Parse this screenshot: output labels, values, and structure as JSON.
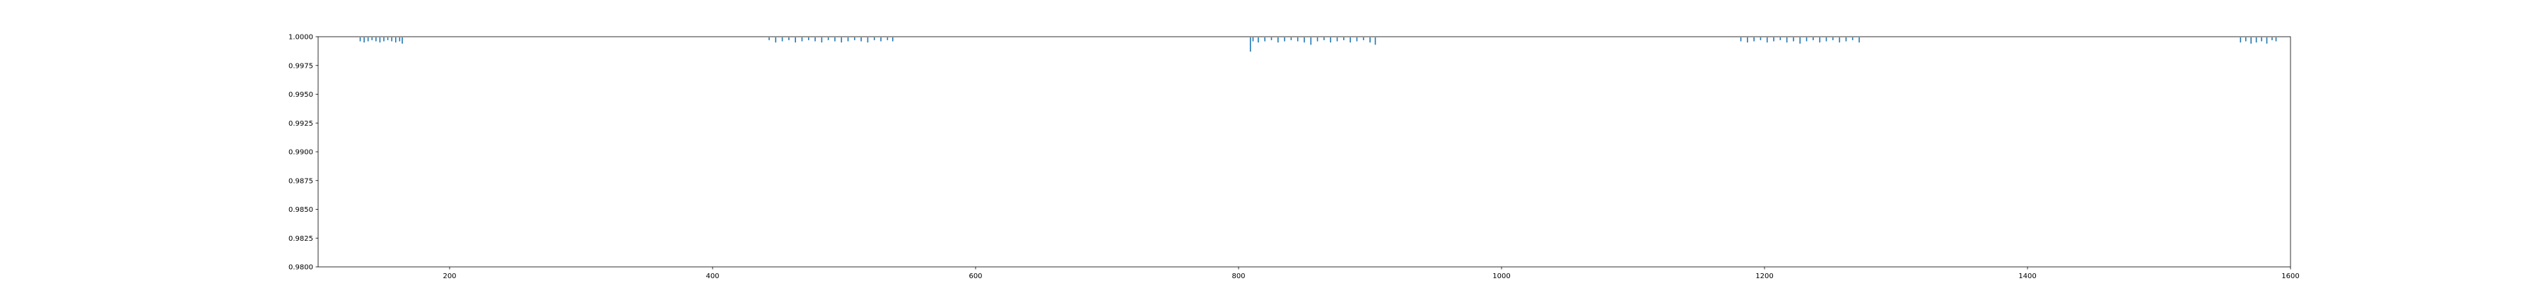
{
  "chart_data": {
    "type": "scatter",
    "title": "",
    "xlabel": "",
    "ylabel": "",
    "xlim": [
      100,
      1600
    ],
    "ylim": [
      0.98,
      1.0
    ],
    "grid": false,
    "x_ticks": [
      200,
      400,
      600,
      800,
      1000,
      1200,
      1400,
      1600
    ],
    "x_tick_labels": [
      "200",
      "400",
      "600",
      "800",
      "1000",
      "1200",
      "1400",
      "1600"
    ],
    "y_ticks": [
      0.98,
      0.9825,
      0.985,
      0.9875,
      0.99,
      0.9925,
      0.995,
      0.9975,
      1.0
    ],
    "y_tick_labels": [
      "0.9800",
      "0.9825",
      "0.9850",
      "0.9875",
      "0.9900",
      "0.9925",
      "0.9950",
      "0.9975",
      "1.0000"
    ],
    "colors": {
      "series": "#1f77b4"
    },
    "series": [
      {
        "x": [
          132,
          135,
          138,
          141,
          144,
          147,
          150,
          153,
          156,
          159,
          162,
          164,
          443,
          448,
          453,
          458,
          463,
          468,
          473,
          478,
          483,
          488,
          493,
          498,
          503,
          508,
          513,
          518,
          523,
          528,
          533,
          537,
          809,
          811,
          815,
          820,
          825,
          830,
          835,
          840,
          845,
          850,
          855,
          860,
          865,
          870,
          875,
          880,
          885,
          890,
          895,
          900,
          904,
          1182,
          1187,
          1192,
          1197,
          1202,
          1207,
          1212,
          1217,
          1222,
          1227,
          1232,
          1237,
          1242,
          1247,
          1252,
          1257,
          1262,
          1267,
          1272,
          1562,
          1566,
          1570,
          1574,
          1578,
          1582,
          1586,
          1589
        ],
        "y": [
          0.9996,
          0.9995,
          0.9996,
          0.9997,
          0.9996,
          0.9995,
          0.9996,
          0.9997,
          0.9996,
          0.9995,
          0.9996,
          0.9994,
          0.9997,
          0.9995,
          0.9996,
          0.9997,
          0.9995,
          0.9996,
          0.9997,
          0.9996,
          0.9995,
          0.9997,
          0.9996,
          0.9995,
          0.9996,
          0.9997,
          0.9996,
          0.9995,
          0.9997,
          0.9996,
          0.9997,
          0.9996,
          0.9987,
          0.9996,
          0.9995,
          0.9996,
          0.9997,
          0.9995,
          0.9996,
          0.9997,
          0.9996,
          0.9995,
          0.9993,
          0.9996,
          0.9997,
          0.9995,
          0.9996,
          0.9997,
          0.9995,
          0.9996,
          0.9997,
          0.9995,
          0.9993,
          0.9996,
          0.9995,
          0.9996,
          0.9997,
          0.9995,
          0.9996,
          0.9997,
          0.9995,
          0.9996,
          0.9994,
          0.9996,
          0.9997,
          0.9995,
          0.9996,
          0.9997,
          0.9995,
          0.9996,
          0.9997,
          0.9995,
          0.9995,
          0.9996,
          0.9994,
          0.9995,
          0.9996,
          0.9994,
          0.9997,
          0.9996
        ]
      }
    ]
  }
}
